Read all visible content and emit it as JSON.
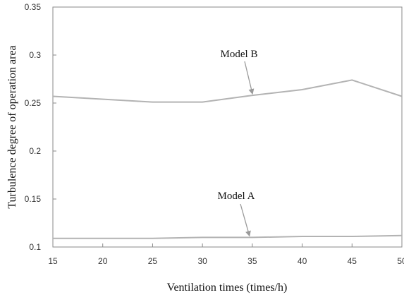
{
  "chart_data": {
    "type": "line",
    "xlabel": "Ventilation times (times/h)",
    "ylabel": "Turbulence degree of operation area",
    "xlim": [
      15,
      50
    ],
    "ylim": [
      0.1,
      0.35
    ],
    "x_ticks": [
      "15",
      "20",
      "25",
      "30",
      "35",
      "40",
      "45",
      "50"
    ],
    "y_ticks": [
      "0.1",
      "0.15",
      "0.2",
      "0.25",
      "0.3",
      "0.35"
    ],
    "grid": false,
    "legend": "none",
    "x": [
      15,
      25,
      30,
      35,
      40,
      45,
      50
    ],
    "series": [
      {
        "name": "Model B",
        "values": [
          0.257,
          0.251,
          0.251,
          0.258,
          0.264,
          0.274,
          0.257
        ],
        "color": "#b3b3b3"
      },
      {
        "name": "Model A",
        "values": [
          0.109,
          0.109,
          0.11,
          0.11,
          0.111,
          0.111,
          0.112
        ],
        "color": "#b3b3b3"
      }
    ],
    "annotations": [
      {
        "text": "Model B",
        "points_to_x": 35,
        "points_to_y": 0.258
      },
      {
        "text": "Model A",
        "points_to_x": 34.7,
        "points_to_y": 0.11
      }
    ]
  }
}
